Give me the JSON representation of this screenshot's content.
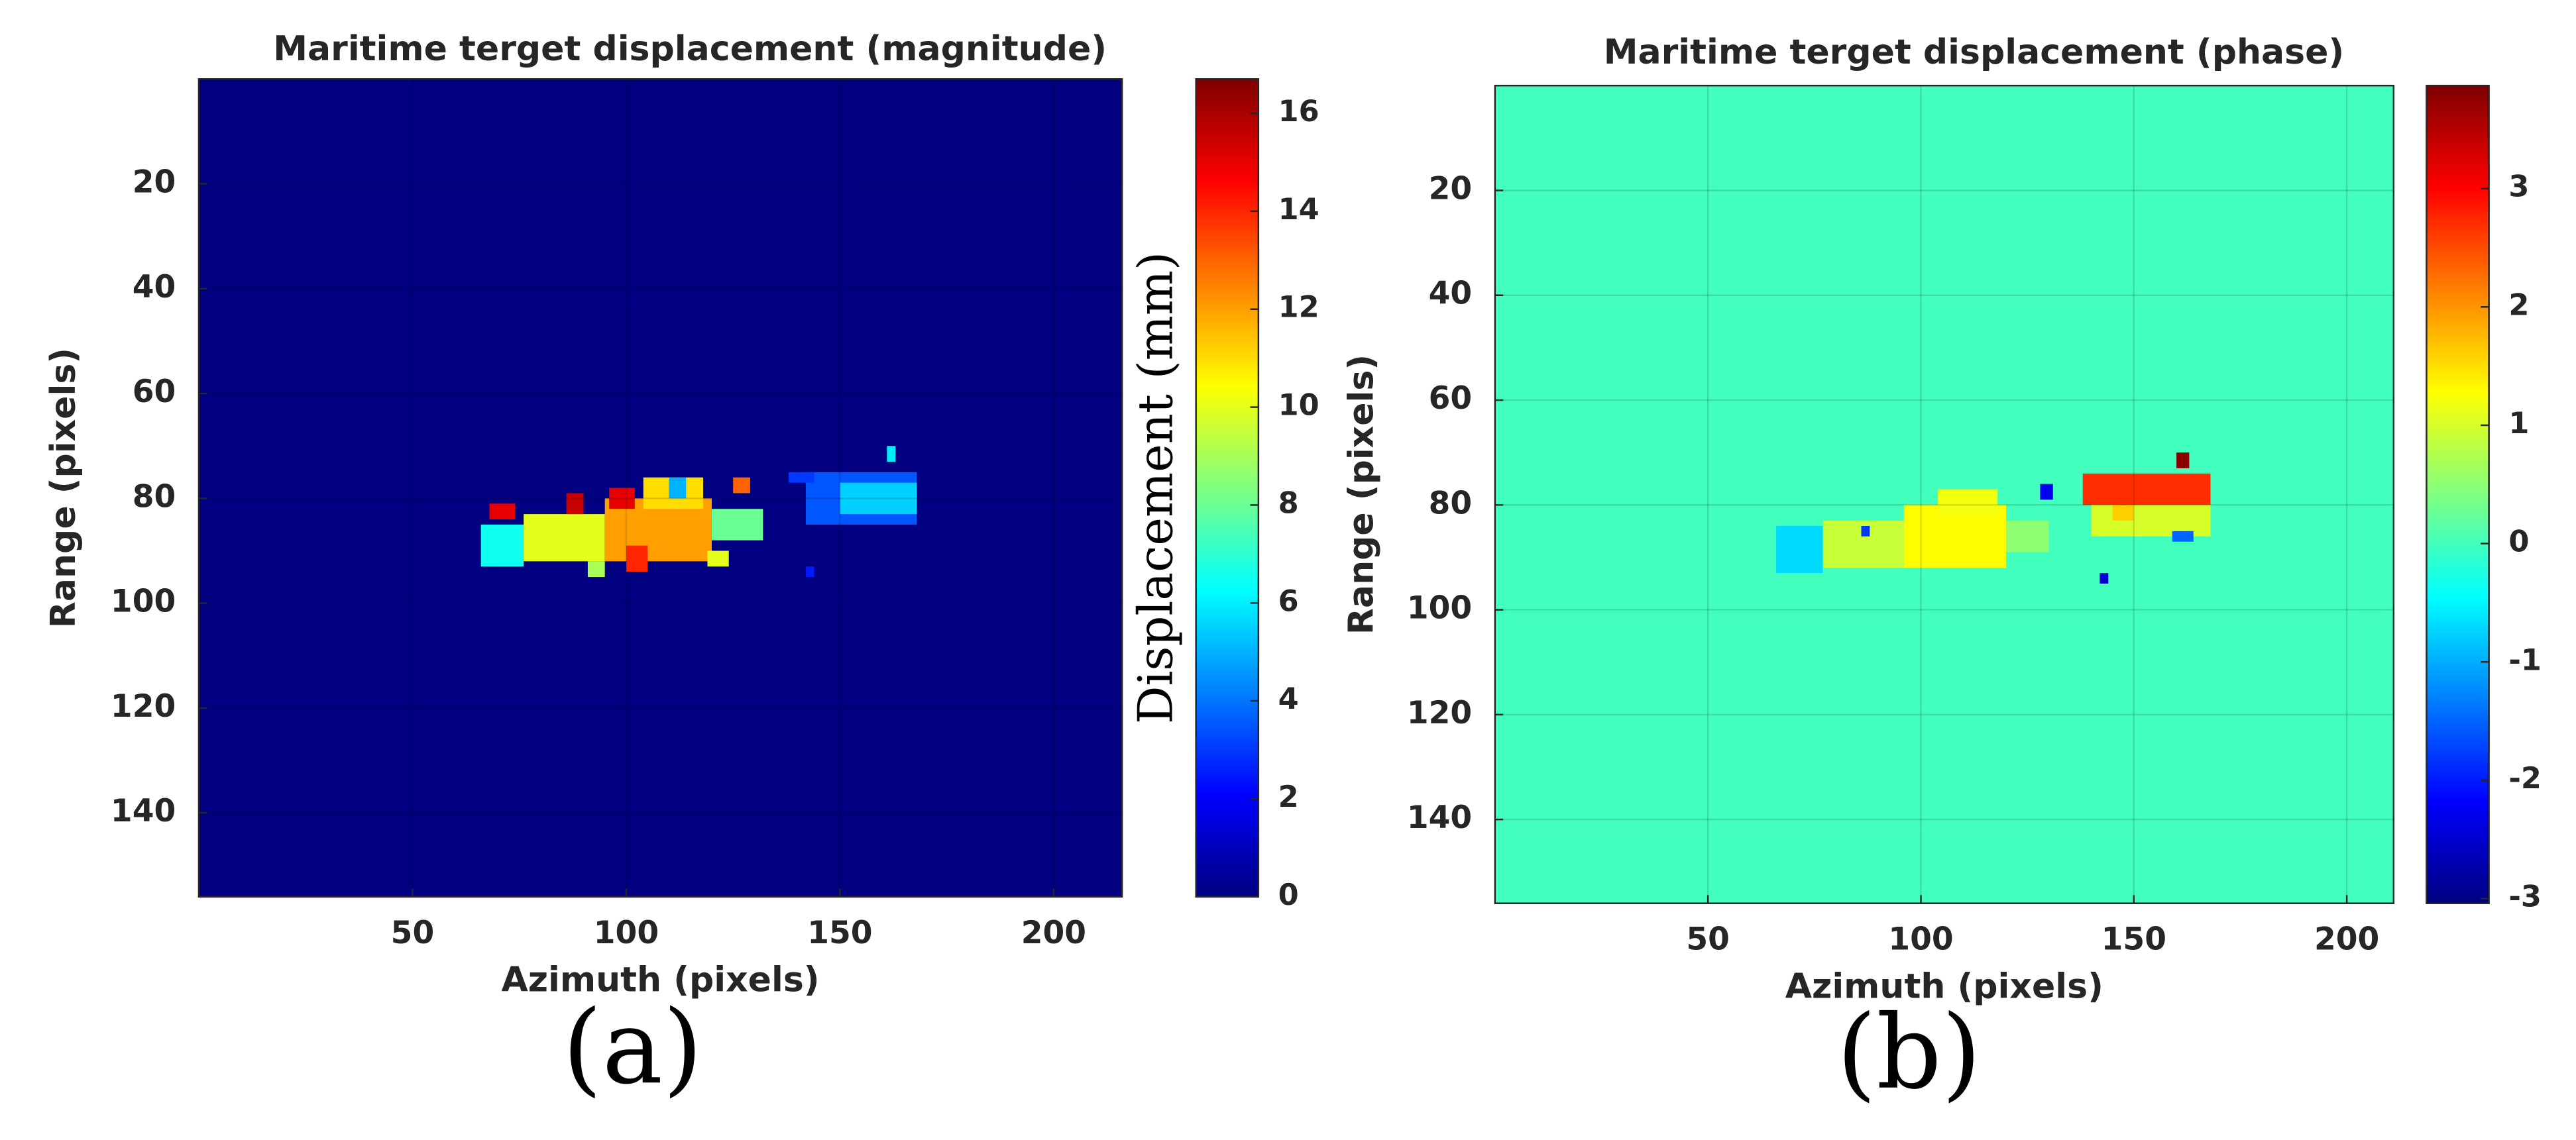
{
  "chart_data": [
    {
      "type": "heatmap",
      "title": "Maritime terget displacement (magnitude)",
      "x_label": "Azimuth (pixels)",
      "y_label": "Range (pixels)",
      "colorbar_label": "Displacement (mm)",
      "caption": "(a)",
      "colormap": "jet",
      "grid": true,
      "y_reversed": true,
      "xlim": [
        0,
        216
      ],
      "ylim": [
        0,
        156
      ],
      "xticks": [
        50,
        100,
        150,
        200
      ],
      "yticks": [
        20,
        40,
        60,
        80,
        100,
        120,
        140
      ],
      "clim": [
        0,
        16.7
      ],
      "cticks": [
        0,
        2,
        4,
        6,
        8,
        10,
        12,
        14,
        16
      ],
      "background": 0,
      "patches": [
        {
          "x": [
            66,
            76
          ],
          "y": [
            85,
            93
          ],
          "value": 6.5
        },
        {
          "x": [
            76,
            95
          ],
          "y": [
            83,
            92
          ],
          "value": 10
        },
        {
          "x": [
            95,
            120
          ],
          "y": [
            80,
            92
          ],
          "value": 12
        },
        {
          "x": [
            104,
            118
          ],
          "y": [
            76,
            82
          ],
          "value": 11
        },
        {
          "x": [
            120,
            132
          ],
          "y": [
            82,
            88
          ],
          "value": 8
        },
        {
          "x": [
            68,
            74
          ],
          "y": [
            81,
            84
          ],
          "value": 15
        },
        {
          "x": [
            86,
            90
          ],
          "y": [
            79,
            83
          ],
          "value": 15.5
        },
        {
          "x": [
            96,
            102
          ],
          "y": [
            78,
            82
          ],
          "value": 15
        },
        {
          "x": [
            100,
            105
          ],
          "y": [
            89,
            94
          ],
          "value": 14
        },
        {
          "x": [
            110,
            114
          ],
          "y": [
            76,
            80
          ],
          "value": 5
        },
        {
          "x": [
            125,
            129
          ],
          "y": [
            76,
            79
          ],
          "value": 13
        },
        {
          "x": [
            91,
            95
          ],
          "y": [
            92,
            95
          ],
          "value": 9
        },
        {
          "x": [
            119,
            124
          ],
          "y": [
            90,
            93
          ],
          "value": 10
        },
        {
          "x": [
            142,
            168
          ],
          "y": [
            75,
            85
          ],
          "value": 3.5
        },
        {
          "x": [
            150,
            168
          ],
          "y": [
            77,
            83
          ],
          "value": 5.5
        },
        {
          "x": [
            138,
            144
          ],
          "y": [
            75,
            77
          ],
          "value": 3
        },
        {
          "x": [
            161,
            163
          ],
          "y": [
            70,
            73
          ],
          "value": 6
        },
        {
          "x": [
            142,
            144
          ],
          "y": [
            93,
            95
          ],
          "value": 2.5
        }
      ]
    },
    {
      "type": "heatmap",
      "title": "Maritime terget displacement (phase)",
      "x_label": "Azimuth (pixels)",
      "y_label": "Range (pixels)",
      "caption": "(b)",
      "colormap": "jet",
      "grid": true,
      "y_reversed": true,
      "xlim": [
        0,
        211
      ],
      "ylim": [
        0,
        156
      ],
      "xticks": [
        50,
        100,
        150,
        200
      ],
      "yticks": [
        20,
        40,
        60,
        80,
        100,
        120,
        140
      ],
      "clim": [
        -3.04,
        3.87
      ],
      "cticks": [
        -3,
        -2,
        -1,
        0,
        1,
        2,
        3
      ],
      "background": 0,
      "patches": [
        {
          "x": [
            66,
            77
          ],
          "y": [
            84,
            93
          ],
          "value": -0.7
        },
        {
          "x": [
            77,
            96
          ],
          "y": [
            83,
            92
          ],
          "value": 0.9
        },
        {
          "x": [
            96,
            120
          ],
          "y": [
            80,
            92
          ],
          "value": 1.3
        },
        {
          "x": [
            104,
            118
          ],
          "y": [
            77,
            82
          ],
          "value": 1.2
        },
        {
          "x": [
            120,
            130
          ],
          "y": [
            83,
            89
          ],
          "value": 0.5
        },
        {
          "x": [
            86,
            88
          ],
          "y": [
            84,
            86
          ],
          "value": -1.8
        },
        {
          "x": [
            128,
            131
          ],
          "y": [
            76,
            79
          ],
          "value": -2.3
        },
        {
          "x": [
            138,
            168
          ],
          "y": [
            74,
            80
          ],
          "value": 2.7
        },
        {
          "x": [
            140,
            168
          ],
          "y": [
            80,
            86
          ],
          "value": 1
        },
        {
          "x": [
            145,
            150
          ],
          "y": [
            80,
            83
          ],
          "value": 1.6
        },
        {
          "x": [
            160,
            163
          ],
          "y": [
            70,
            73
          ],
          "value": 3.8
        },
        {
          "x": [
            142,
            144
          ],
          "y": [
            93,
            95
          ],
          "value": -2.5
        },
        {
          "x": [
            159,
            164
          ],
          "y": [
            85,
            87
          ],
          "value": -1.5
        }
      ]
    }
  ]
}
